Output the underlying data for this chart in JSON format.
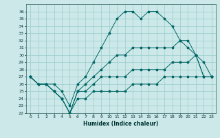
{
  "xlabel": "Humidex (Indice chaleur)",
  "ylabel": "",
  "bg_color": "#cce8e8",
  "grid_color": "#99cccc",
  "line_color": "#006666",
  "x": [
    0,
    1,
    2,
    3,
    4,
    5,
    6,
    7,
    8,
    9,
    10,
    11,
    12,
    13,
    14,
    15,
    16,
    17,
    18,
    19,
    20,
    21,
    22,
    23
  ],
  "line1": [
    27,
    26,
    26,
    26,
    25,
    23,
    26,
    27,
    29,
    31,
    33,
    35,
    36,
    36,
    35,
    36,
    36,
    35,
    34,
    32,
    31,
    30,
    29,
    27
  ],
  "line2": [
    27,
    26,
    26,
    25,
    24,
    22,
    25,
    26,
    27,
    28,
    29,
    30,
    30,
    31,
    31,
    31,
    31,
    31,
    31,
    32,
    32,
    30,
    27,
    27
  ],
  "line3": [
    27,
    26,
    26,
    25,
    24,
    22,
    25,
    25,
    26,
    27,
    27,
    27,
    27,
    28,
    28,
    28,
    28,
    28,
    29,
    29,
    29,
    30,
    27,
    27
  ],
  "line4": [
    27,
    26,
    26,
    25,
    24,
    22,
    24,
    24,
    25,
    25,
    25,
    25,
    25,
    26,
    26,
    26,
    26,
    27,
    27,
    27,
    27,
    27,
    27,
    27
  ],
  "ylim": [
    22,
    37
  ],
  "xlim": [
    -0.5,
    23.5
  ],
  "yticks": [
    22,
    23,
    24,
    25,
    26,
    27,
    28,
    29,
    30,
    31,
    32,
    33,
    34,
    35,
    36
  ],
  "xticks": [
    0,
    1,
    2,
    3,
    4,
    5,
    6,
    7,
    8,
    9,
    10,
    11,
    12,
    13,
    14,
    15,
    16,
    17,
    18,
    19,
    20,
    21,
    22,
    23
  ]
}
